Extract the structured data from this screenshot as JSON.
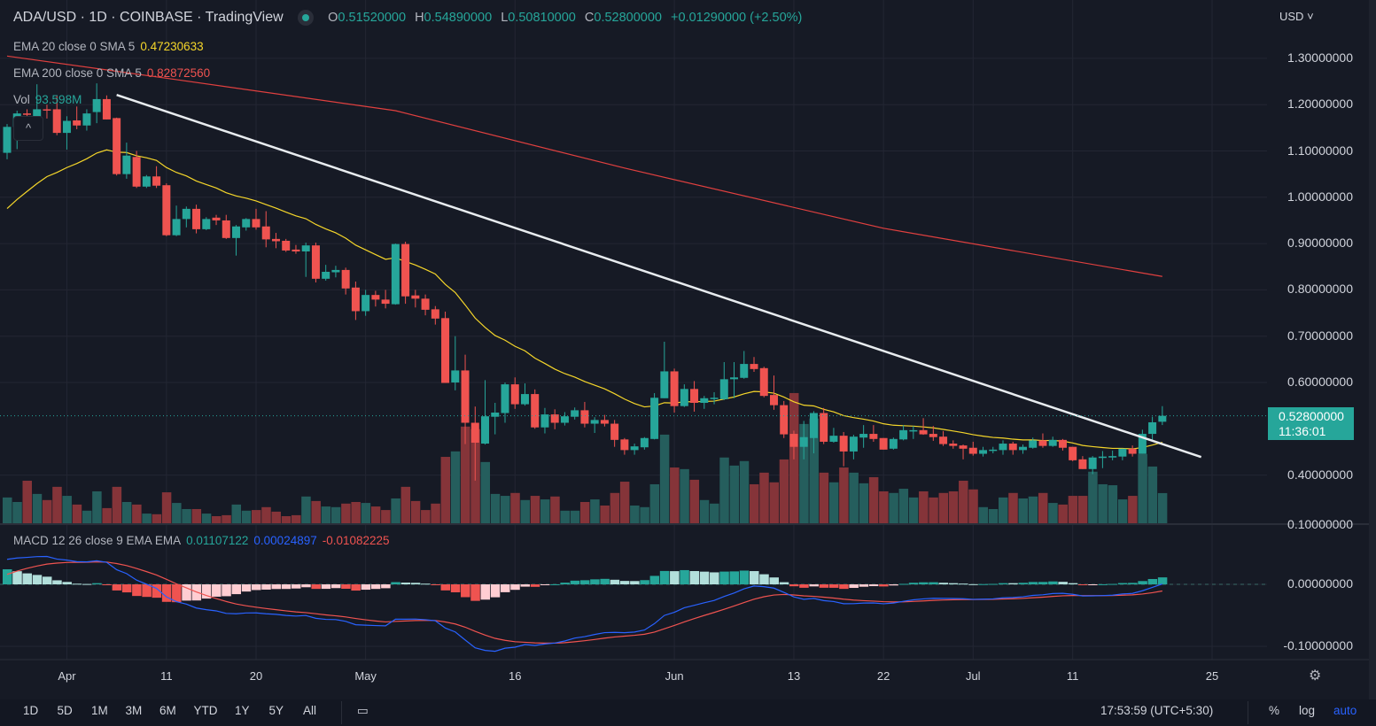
{
  "header": {
    "symbol_line": "ADA/USD · 1D · COINBASE · TradingView",
    "ohlc": {
      "o_label": "O",
      "o": "0.51520000",
      "h_label": "H",
      "h": "0.54890000",
      "l_label": "L",
      "l": "0.50810000",
      "c_label": "C",
      "c": "0.52800000",
      "change": "+0.01290000 (+2.50%)"
    }
  },
  "indicators": {
    "ema20": {
      "label": "EMA 20 close 0 SMA 5",
      "value": "0.47230633",
      "color": "#f5d62a"
    },
    "ema200": {
      "label": "EMA 200 close 0 SMA 5",
      "value": "0.82872560",
      "color": "#ef5350"
    },
    "vol": {
      "label": "Vol",
      "value": "93.598M"
    },
    "macd": {
      "label": "MACD 12 26 close 9 EMA EMA",
      "hist": "0.01107122",
      "macd": "0.00024897",
      "signal": "-0.01082225"
    },
    "collapse": "^"
  },
  "price_axis": {
    "currency": "USD",
    "ticks": [
      "1.30000000",
      "1.20000000",
      "1.10000000",
      "1.00000000",
      "0.90000000",
      "0.80000000",
      "0.70000000",
      "0.60000000",
      "0.40000000"
    ],
    "tick_values": [
      1.3,
      1.2,
      1.1,
      1.0,
      0.9,
      0.8,
      0.7,
      0.6,
      0.4
    ],
    "volume_edge_label": "0.10000000",
    "current_price": "0.52800000",
    "countdown": "11:36:01",
    "macd_ticks": [
      "0.00000000",
      "-0.10000000"
    ],
    "macd_tick_values": [
      0,
      -0.1
    ]
  },
  "time_axis": {
    "labels": [
      "Apr",
      "11",
      "20",
      "May",
      "16",
      "Jun",
      "13",
      "22",
      "Jul",
      "11",
      "25"
    ],
    "label_index": [
      6,
      16,
      25,
      36,
      51,
      67,
      79,
      88,
      97,
      107,
      121
    ]
  },
  "toolbar": {
    "ranges": [
      "1D",
      "5D",
      "1M",
      "3M",
      "6M",
      "YTD",
      "1Y",
      "5Y",
      "All"
    ],
    "clock": "17:53:59 (UTC+5:30)",
    "percent": "%",
    "log": "log",
    "auto": "auto"
  },
  "colors": {
    "up": "#26a69a",
    "down": "#ef5350",
    "up_vol": "#255e5d",
    "down_vol": "#853439",
    "trendline": "#e8ecef",
    "macd_line": "#2962ff",
    "signal_line": "#ef5350",
    "auto": "#2962ff",
    "bg": "#161a25"
  },
  "chart_data": {
    "type": "candlestick",
    "title": "ADA/USD 1D COINBASE",
    "ylim": [
      0.1,
      1.35
    ],
    "candle_fields": [
      "open",
      "high",
      "low",
      "close",
      "volume_M"
    ],
    "candles": [
      [
        1.096,
        1.158,
        1.082,
        1.152,
        80
      ],
      [
        1.152,
        1.187,
        1.104,
        1.181,
        66
      ],
      [
        1.181,
        1.19,
        1.17,
        1.178,
        132
      ],
      [
        1.168,
        1.244,
        1.16,
        1.19,
        91
      ],
      [
        1.19,
        1.2,
        1.17,
        1.188,
        72
      ],
      [
        1.19,
        1.22,
        1.134,
        1.139,
        113
      ],
      [
        1.139,
        1.175,
        1.103,
        1.165,
        85
      ],
      [
        1.166,
        1.196,
        1.147,
        1.155,
        58
      ],
      [
        1.155,
        1.19,
        1.144,
        1.181,
        39
      ],
      [
        1.184,
        1.246,
        1.16,
        1.212,
        99
      ],
      [
        1.212,
        1.22,
        1.168,
        1.168,
        47
      ],
      [
        1.171,
        1.172,
        1.047,
        1.05,
        113
      ],
      [
        1.05,
        1.118,
        1.04,
        1.09,
        66
      ],
      [
        1.087,
        1.1,
        1.02,
        1.023,
        58
      ],
      [
        1.023,
        1.048,
        1.02,
        1.045,
        30
      ],
      [
        1.045,
        1.067,
        1.02,
        1.025,
        28
      ],
      [
        1.026,
        1.03,
        0.916,
        0.918,
        96
      ],
      [
        0.918,
        0.982,
        0.916,
        0.953,
        63
      ],
      [
        0.953,
        0.98,
        0.935,
        0.975,
        44
      ],
      [
        0.975,
        0.984,
        0.922,
        0.931,
        44
      ],
      [
        0.931,
        0.957,
        0.929,
        0.953,
        30
      ],
      [
        0.956,
        0.962,
        0.94,
        0.95,
        22
      ],
      [
        0.95,
        0.962,
        0.91,
        0.912,
        25
      ],
      [
        0.912,
        0.94,
        0.874,
        0.937,
        58
      ],
      [
        0.935,
        0.955,
        0.928,
        0.953,
        39
      ],
      [
        0.953,
        0.975,
        0.93,
        0.935,
        41
      ],
      [
        0.937,
        0.97,
        0.892,
        0.909,
        50
      ],
      [
        0.91,
        0.923,
        0.89,
        0.905,
        36
      ],
      [
        0.906,
        0.91,
        0.882,
        0.885,
        22
      ],
      [
        0.887,
        0.897,
        0.878,
        0.883,
        25
      ],
      [
        0.883,
        0.902,
        0.828,
        0.896,
        83
      ],
      [
        0.896,
        0.902,
        0.816,
        0.824,
        69
      ],
      [
        0.824,
        0.854,
        0.82,
        0.839,
        52
      ],
      [
        0.838,
        0.852,
        0.827,
        0.843,
        50
      ],
      [
        0.843,
        0.848,
        0.79,
        0.803,
        61
      ],
      [
        0.805,
        0.818,
        0.735,
        0.754,
        66
      ],
      [
        0.754,
        0.8,
        0.744,
        0.789,
        63
      ],
      [
        0.789,
        0.798,
        0.764,
        0.779,
        52
      ],
      [
        0.779,
        0.8,
        0.76,
        0.77,
        41
      ],
      [
        0.769,
        0.9,
        0.768,
        0.899,
        77
      ],
      [
        0.899,
        0.904,
        0.77,
        0.786,
        113
      ],
      [
        0.788,
        0.8,
        0.762,
        0.781,
        69
      ],
      [
        0.781,
        0.79,
        0.745,
        0.757,
        41
      ],
      [
        0.758,
        0.765,
        0.725,
        0.738,
        61
      ],
      [
        0.739,
        0.753,
        0.599,
        0.599,
        206
      ],
      [
        0.6,
        0.7,
        0.583,
        0.626,
        223
      ],
      [
        0.626,
        0.66,
        0.467,
        0.513,
        300
      ],
      [
        0.513,
        0.548,
        0.388,
        0.47,
        292
      ],
      [
        0.468,
        0.605,
        0.466,
        0.527,
        190
      ],
      [
        0.526,
        0.556,
        0.488,
        0.535,
        91
      ],
      [
        0.534,
        0.6,
        0.513,
        0.596,
        85
      ],
      [
        0.596,
        0.611,
        0.543,
        0.553,
        94
      ],
      [
        0.553,
        0.598,
        0.55,
        0.575,
        72
      ],
      [
        0.575,
        0.585,
        0.5,
        0.503,
        85
      ],
      [
        0.503,
        0.545,
        0.49,
        0.531,
        74
      ],
      [
        0.531,
        0.542,
        0.499,
        0.513,
        83
      ],
      [
        0.513,
        0.536,
        0.507,
        0.527,
        39
      ],
      [
        0.526,
        0.546,
        0.52,
        0.54,
        39
      ],
      [
        0.54,
        0.558,
        0.503,
        0.511,
        66
      ],
      [
        0.511,
        0.525,
        0.491,
        0.519,
        74
      ],
      [
        0.519,
        0.53,
        0.505,
        0.511,
        55
      ],
      [
        0.511,
        0.519,
        0.461,
        0.476,
        94
      ],
      [
        0.477,
        0.48,
        0.444,
        0.454,
        129
      ],
      [
        0.454,
        0.468,
        0.444,
        0.462,
        55
      ],
      [
        0.46,
        0.482,
        0.455,
        0.48,
        50
      ],
      [
        0.478,
        0.577,
        0.477,
        0.567,
        121
      ],
      [
        0.566,
        0.688,
        0.566,
        0.624,
        275
      ],
      [
        0.624,
        0.63,
        0.535,
        0.549,
        173
      ],
      [
        0.549,
        0.596,
        0.547,
        0.586,
        168
      ],
      [
        0.586,
        0.603,
        0.537,
        0.556,
        135
      ],
      [
        0.556,
        0.571,
        0.543,
        0.566,
        72
      ],
      [
        0.566,
        0.579,
        0.553,
        0.567,
        61
      ],
      [
        0.564,
        0.644,
        0.562,
        0.607,
        204
      ],
      [
        0.607,
        0.644,
        0.566,
        0.611,
        179
      ],
      [
        0.61,
        0.668,
        0.608,
        0.64,
        193
      ],
      [
        0.64,
        0.655,
        0.623,
        0.629,
        121
      ],
      [
        0.631,
        0.634,
        0.568,
        0.571,
        157
      ],
      [
        0.573,
        0.615,
        0.541,
        0.551,
        127
      ],
      [
        0.551,
        0.56,
        0.48,
        0.488,
        198
      ],
      [
        0.489,
        0.496,
        0.434,
        0.461,
        404
      ],
      [
        0.461,
        0.517,
        0.434,
        0.482,
        308
      ],
      [
        0.48,
        0.538,
        0.447,
        0.534,
        325
      ],
      [
        0.534,
        0.545,
        0.467,
        0.472,
        157
      ],
      [
        0.472,
        0.502,
        0.47,
        0.485,
        127
      ],
      [
        0.485,
        0.493,
        0.419,
        0.451,
        173
      ],
      [
        0.451,
        0.487,
        0.434,
        0.483,
        157
      ],
      [
        0.481,
        0.508,
        0.459,
        0.489,
        124
      ],
      [
        0.489,
        0.508,
        0.472,
        0.478,
        143
      ],
      [
        0.48,
        0.48,
        0.455,
        0.455,
        99
      ],
      [
        0.457,
        0.481,
        0.455,
        0.478,
        94
      ],
      [
        0.477,
        0.508,
        0.475,
        0.497,
        107
      ],
      [
        0.496,
        0.506,
        0.478,
        0.497,
        80
      ],
      [
        0.497,
        0.523,
        0.487,
        0.488,
        99
      ],
      [
        0.489,
        0.506,
        0.474,
        0.482,
        80
      ],
      [
        0.483,
        0.495,
        0.463,
        0.467,
        94
      ],
      [
        0.468,
        0.475,
        0.457,
        0.463,
        99
      ],
      [
        0.464,
        0.466,
        0.434,
        0.457,
        132
      ],
      [
        0.459,
        0.472,
        0.442,
        0.446,
        105
      ],
      [
        0.446,
        0.461,
        0.44,
        0.454,
        50
      ],
      [
        0.454,
        0.461,
        0.447,
        0.455,
        44
      ],
      [
        0.454,
        0.475,
        0.444,
        0.468,
        80
      ],
      [
        0.468,
        0.472,
        0.444,
        0.454,
        94
      ],
      [
        0.454,
        0.466,
        0.446,
        0.461,
        77
      ],
      [
        0.459,
        0.481,
        0.457,
        0.475,
        83
      ],
      [
        0.475,
        0.49,
        0.459,
        0.463,
        94
      ],
      [
        0.463,
        0.483,
        0.461,
        0.476,
        63
      ],
      [
        0.476,
        0.478,
        0.453,
        0.459,
        58
      ],
      [
        0.461,
        0.461,
        0.43,
        0.432,
        85
      ],
      [
        0.434,
        0.441,
        0.413,
        0.413,
        85
      ],
      [
        0.413,
        0.441,
        0.402,
        0.438,
        160
      ],
      [
        0.437,
        0.452,
        0.415,
        0.44,
        121
      ],
      [
        0.438,
        0.453,
        0.432,
        0.441,
        118
      ],
      [
        0.44,
        0.457,
        0.432,
        0.457,
        74
      ],
      [
        0.457,
        0.464,
        0.44,
        0.446,
        85
      ],
      [
        0.446,
        0.498,
        0.446,
        0.489,
        215
      ],
      [
        0.489,
        0.526,
        0.474,
        0.514,
        176
      ],
      [
        0.5152,
        0.5489,
        0.5081,
        0.528,
        93.598
      ]
    ],
    "ema20_seed": 0.957,
    "ema200_points": [
      [
        0,
        1.305
      ],
      [
        17,
        1.254
      ],
      [
        39,
        1.187
      ],
      [
        62,
        1.063
      ],
      [
        88,
        0.933
      ],
      [
        116,
        0.829
      ]
    ],
    "trendline": [
      [
        11,
        1.221
      ],
      [
        119.9,
        0.439
      ]
    ],
    "macd_seed": {
      "ema12": 1.11,
      "ema26": 1.07,
      "signal": 0.01
    }
  }
}
